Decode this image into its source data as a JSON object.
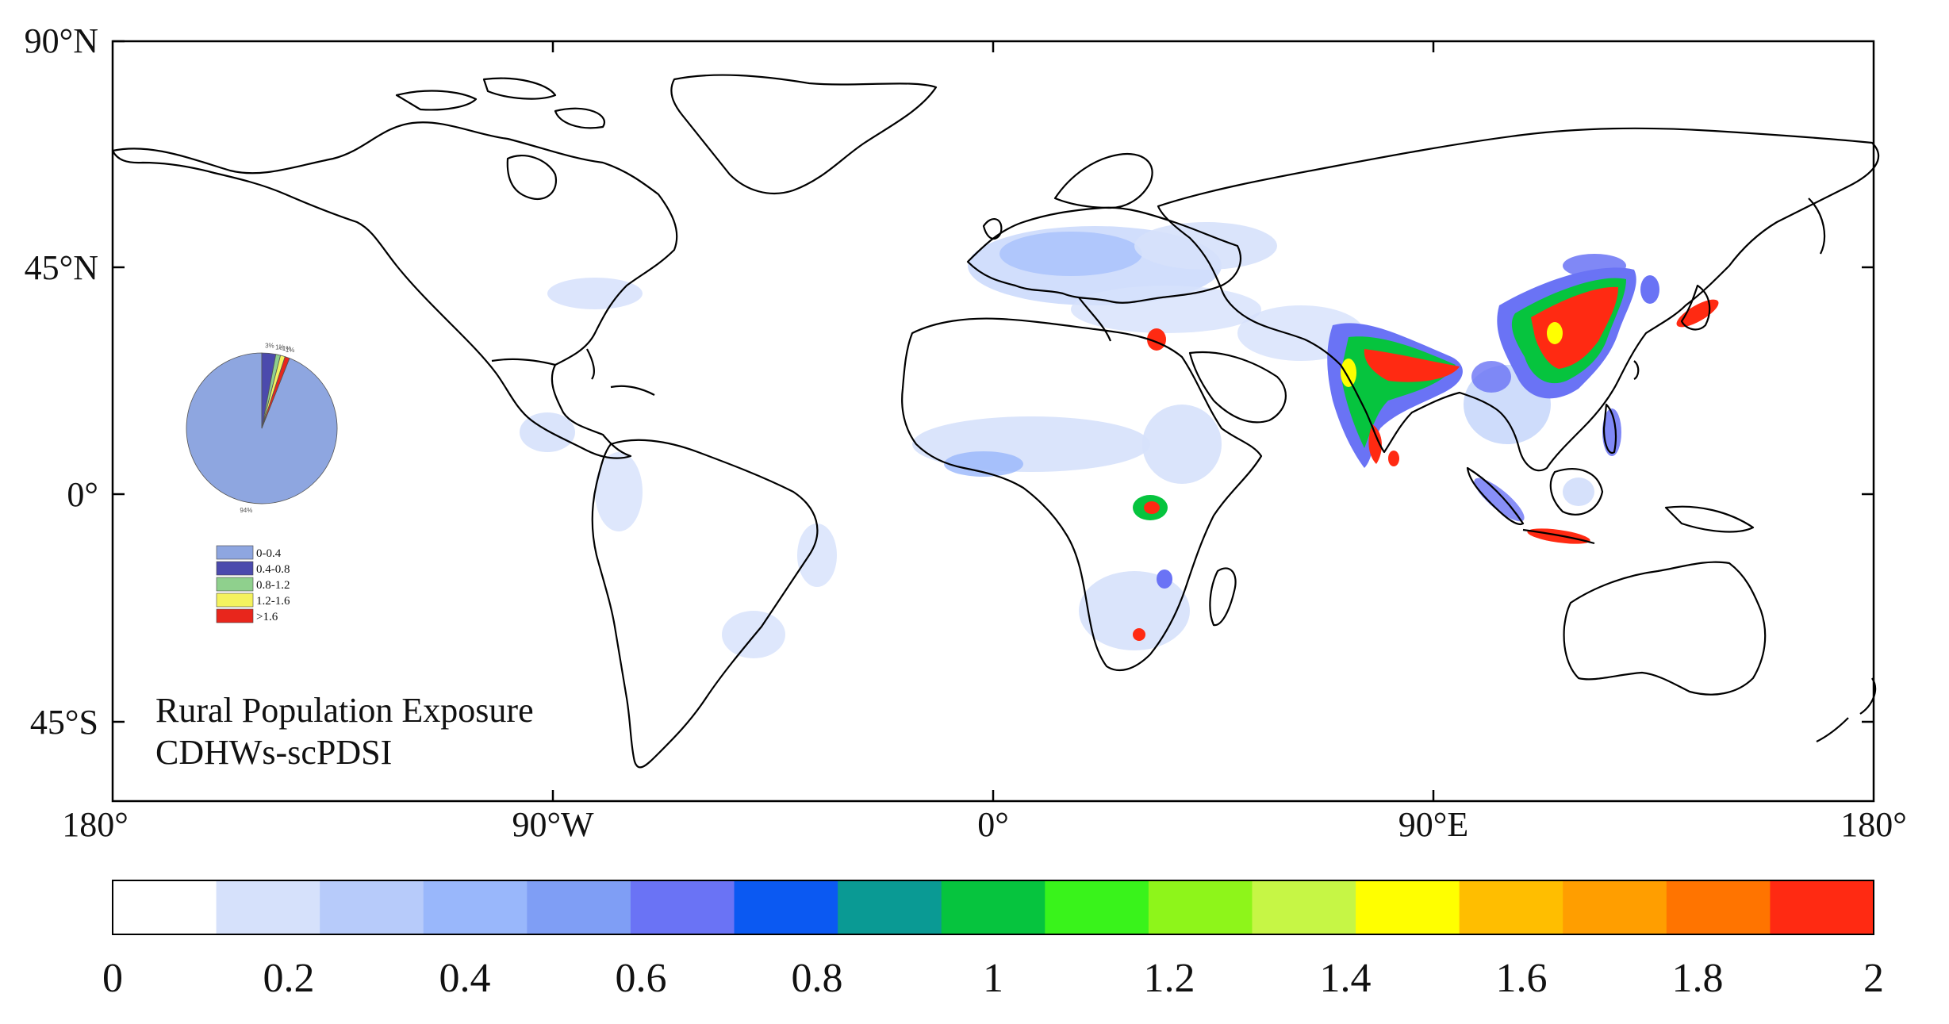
{
  "map": {
    "title_line1": "Rural Population Exposure",
    "title_line2": "CDHWs-scPDSI",
    "lat_ticks": [
      "90°N",
      "45°N",
      "0°",
      "45°S"
    ],
    "lon_ticks": [
      "180°",
      "90°W",
      "0°",
      "90°E",
      "180°"
    ],
    "frame_color": "#000000",
    "coast_color": "#000000"
  },
  "colorbar": {
    "tick_labels": [
      "0",
      "0.2",
      "0.4",
      "0.6",
      "0.8",
      "1",
      "1.2",
      "1.4",
      "1.6",
      "1.8",
      "2"
    ],
    "colors": [
      "#ffffff",
      "#d6e1fb",
      "#b7cbfa",
      "#99b7fb",
      "#7f9ef5",
      "#6a73f5",
      "#0b59f2",
      "#0a9a94",
      "#06c43e",
      "#39f31b",
      "#8ef51a",
      "#c6f645",
      "#ffff00",
      "#ffbe00",
      "#ff9e00",
      "#ff7400",
      "#ff2a12"
    ]
  },
  "inset": {
    "legend": [
      {
        "label": "0-0.4",
        "color": "#8ea6e0"
      },
      {
        "label": "0.4-0.8",
        "color": "#4b4aad"
      },
      {
        "label": "0.8-1.2",
        "color": "#8fd08d"
      },
      {
        "label": "1.2-1.6",
        "color": "#f4f25e"
      },
      {
        "label": ">1.6",
        "color": "#e8261c"
      }
    ],
    "pie_values": [
      94,
      3,
      1,
      1,
      1
    ],
    "pie_labels": [
      "94%",
      "3%",
      "1%",
      "<1%",
      "1%"
    ]
  },
  "exposure": {
    "levels": [
      "#d6e1fb",
      "#99b7fb",
      "#6a73f5",
      "#0b59f2",
      "#06c43e",
      "#c6f645",
      "#ffff00",
      "#ff9e00",
      "#ff2a12"
    ]
  }
}
